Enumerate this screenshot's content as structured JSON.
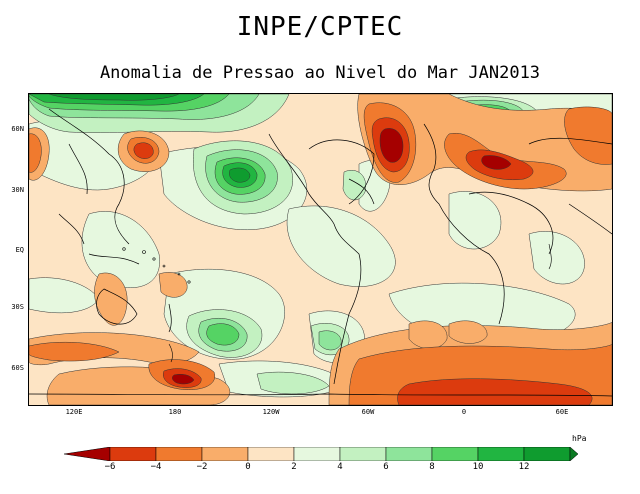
{
  "header": {
    "title": "INPE/CPTEC",
    "subtitle": "Anomalia de Pressao ao Nivel do Mar JAN2013"
  },
  "map": {
    "latitude_labels": [
      "60N",
      "30N",
      "EQ",
      "30S",
      "60S"
    ],
    "longitude_labels": [
      "120E",
      "180",
      "120W",
      "60W",
      "0",
      "60E"
    ]
  },
  "colorbar": {
    "unit": "hPa",
    "tick_labels": [
      "−6",
      "−4",
      "−2",
      "0",
      "2",
      "4",
      "6",
      "8",
      "10",
      "12"
    ],
    "colors": [
      "#a50000",
      "#dc3b0e",
      "#f07a2e",
      "#f9ad6a",
      "#fde4c4",
      "#e6f8df",
      "#c3f1c1",
      "#8ee49b",
      "#55d364",
      "#21b541",
      "#0f9c2f",
      "#0a7a22"
    ]
  }
}
